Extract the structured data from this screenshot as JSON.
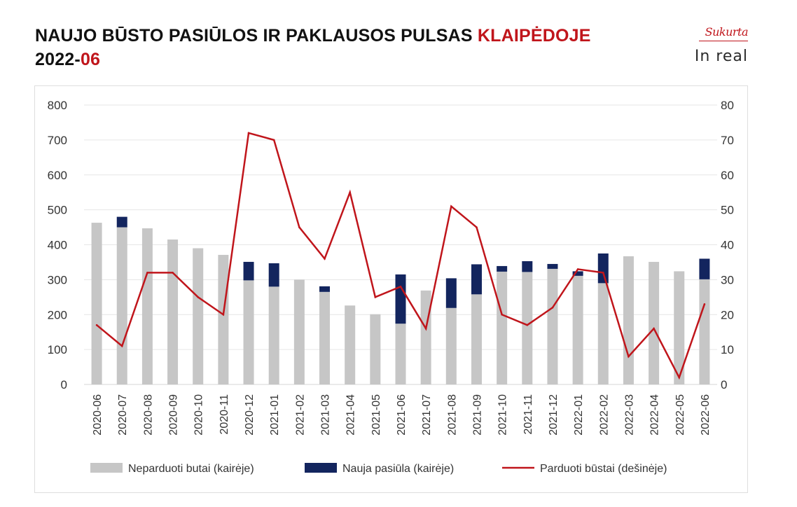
{
  "title": {
    "line1_main": "NAUJO BŪSTO PASIŪLOS IR PAKLAUSOS PULSAS ",
    "line1_accent": "KLAIPĖDOJE",
    "line2_main": "2022-",
    "line2_accent": "06"
  },
  "brand": {
    "sukurta": "Sukurta",
    "inreal": "In real"
  },
  "colors": {
    "accent": "#c0151b",
    "unsold": "#c6c6c6",
    "new_supply": "#13255e",
    "sold_line": "#c0151b"
  },
  "chart_data": {
    "type": "bar",
    "categories": [
      "2020-06",
      "2020-07",
      "2020-08",
      "2020-09",
      "2020-10",
      "2020-11",
      "2020-12",
      "2021-01",
      "2021-02",
      "2021-03",
      "2021-04",
      "2021-05",
      "2021-06",
      "2021-07",
      "2021-08",
      "2021-09",
      "2021-10",
      "2021-11",
      "2021-12",
      "2022-01",
      "2022-02",
      "2022-03",
      "2022-04",
      "2022-05",
      "2022-06"
    ],
    "series": [
      {
        "name": "Neparduoti butai (kairėje)",
        "kind": "bar",
        "axis": "left",
        "values": [
          463,
          450,
          447,
          415,
          390,
          371,
          298,
          280,
          300,
          265,
          226,
          201,
          174,
          269,
          219,
          258,
          323,
          322,
          331,
          311,
          290,
          367,
          351,
          324,
          301
        ]
      },
      {
        "name": "Nauja pasiūla (kairėje)",
        "kind": "bar-stacked",
        "axis": "left",
        "values": [
          0,
          30,
          0,
          0,
          0,
          0,
          53,
          67,
          0,
          16,
          0,
          0,
          141,
          0,
          85,
          86,
          16,
          31,
          14,
          13,
          85,
          0,
          0,
          0,
          59
        ]
      },
      {
        "name": "Parduoti būstai (dešinėje)",
        "kind": "line",
        "axis": "right",
        "values": [
          17,
          11,
          32,
          32,
          25,
          20,
          72,
          70,
          45,
          36,
          55,
          25,
          28,
          16,
          51,
          45,
          20,
          17,
          22,
          33,
          32,
          8,
          16,
          2,
          23
        ]
      }
    ],
    "y_left": {
      "min": 0,
      "max": 800,
      "ticks": [
        "0",
        "100",
        "200",
        "300",
        "400",
        "500",
        "600",
        "700",
        "800"
      ]
    },
    "y_right": {
      "min": 0,
      "max": 80,
      "ticks": [
        "0",
        "10",
        "20",
        "30",
        "40",
        "50",
        "60",
        "70",
        "80"
      ]
    },
    "grid": true,
    "legend_position": "bottom"
  }
}
